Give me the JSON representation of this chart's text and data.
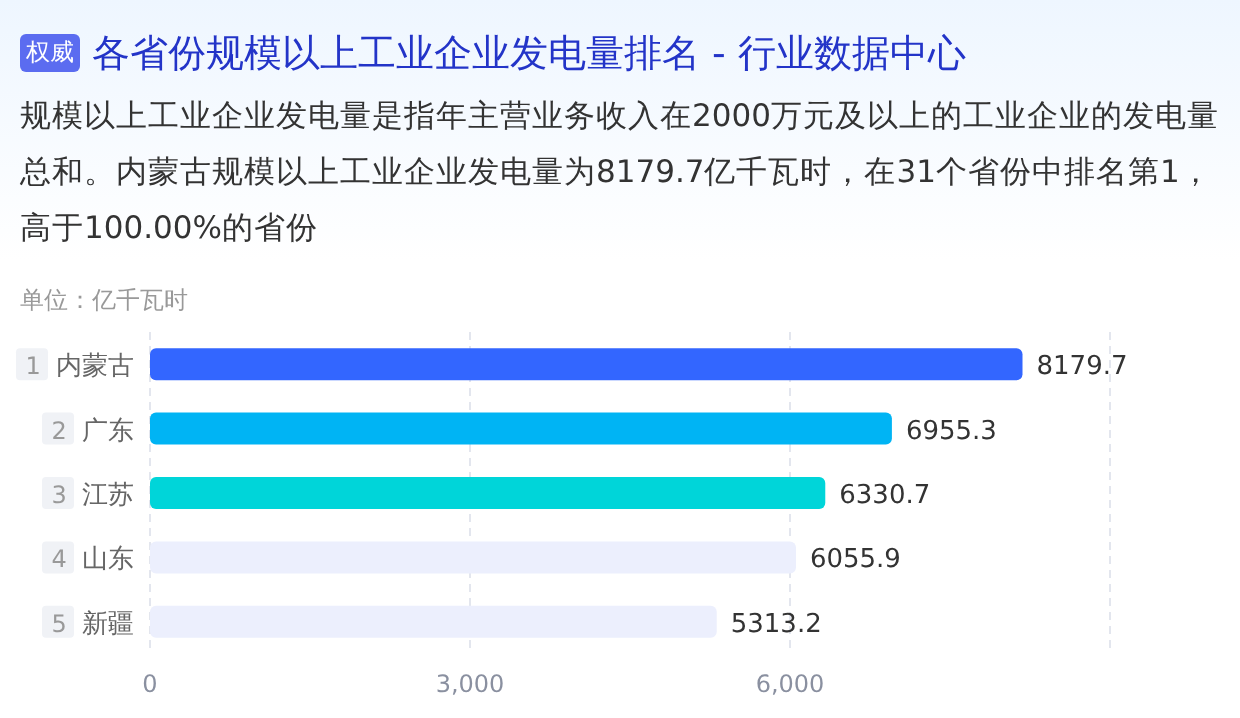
{
  "chart_data": {
    "type": "bar",
    "orientation": "horizontal",
    "title": "各省份规模以上工业企业发电量排名 - 行业数据中心",
    "subtitle": "规模以上工业企业发电量是指年主营业务收入在2000万元及以上的工业企业的发电量总和。内蒙古规模以上工业企业发电量为8179.7亿千瓦时，在31个省份中排名第1，高于100.00%的省份",
    "annotations": [
      "权威",
      "单位：亿千瓦时"
    ],
    "categories": [
      "1 内蒙古",
      "2 广东",
      "3 江苏",
      "4 山东",
      "5 新疆"
    ],
    "values": [
      8179.7,
      6955.3,
      6330.7,
      6055.9,
      5313.2
    ],
    "colors": [
      "#3366ff",
      "#00b4f4",
      "#00d5d9",
      "#eceffd",
      "#eceffd"
    ],
    "xlim": [
      0,
      9000
    ],
    "xticks": [
      {
        "value": 0,
        "label": "0"
      },
      {
        "value": 3000,
        "label": "3,000"
      },
      {
        "value": 6000,
        "label": "6,000"
      },
      {
        "value": 9000,
        "label": null
      }
    ],
    "grid": "x",
    "data_labels": true
  }
}
